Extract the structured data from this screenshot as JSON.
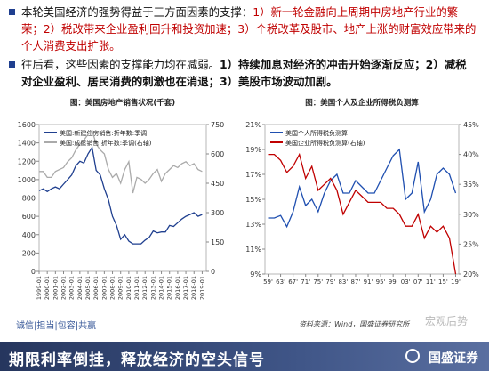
{
  "text_blocks": [
    {
      "parts": [
        "本轮美国经济的强势得益于三方面因素的支撑：",
        "1）新一轮金融向上周期中房地产行业的繁荣；2）税改带来企业盈利回升和投资加速；3）个税改革及股市、地产上涨的财富效应带来的个人消费支出扩张。"
      ]
    },
    {
      "parts": [
        "往后看，这些因素的支撑能力均在减弱。",
        "1）持续加息对经济的冲击开始逐渐反应；2）减税对企业盈利、居民消费的刺激也在消退；3）美股市场波动加剧。"
      ]
    }
  ],
  "chart_data": [
    {
      "type": "line",
      "title": "图：美国房地产销售状况(千套)",
      "x": [
        1999,
        1999.5,
        2000,
        2000.5,
        2001,
        2001.5,
        2002,
        2002.5,
        2003,
        2003.5,
        2004,
        2004.5,
        2005,
        2005.5,
        2006,
        2006.5,
        2007,
        2007.5,
        2008,
        2008.5,
        2009,
        2009.5,
        2010,
        2010.5,
        2011,
        2011.5,
        2012,
        2012.5,
        2013,
        2013.5,
        2014,
        2014.5,
        2015,
        2015.5,
        2016,
        2016.5,
        2017,
        2017.5,
        2018,
        2018.5,
        2019
      ],
      "xlim": [
        1999,
        2019.5
      ],
      "xticks": [
        {
          "value": 1999,
          "label": "1999-01"
        },
        {
          "value": 2000,
          "label": "2000-01"
        },
        {
          "value": 2001,
          "label": "2001-01"
        },
        {
          "value": 2002,
          "label": "2002-01"
        },
        {
          "value": 2003,
          "label": "2003-01"
        },
        {
          "value": 2004,
          "label": "2004-01"
        },
        {
          "value": 2005,
          "label": "2005-01"
        },
        {
          "value": 2006,
          "label": "2006-01"
        },
        {
          "value": 2007,
          "label": "2007-01"
        },
        {
          "value": 2008,
          "label": "2008-01"
        },
        {
          "value": 2009,
          "label": "2009-01"
        },
        {
          "value": 2010,
          "label": "2010-01"
        },
        {
          "value": 2011,
          "label": "2011-01"
        },
        {
          "value": 2012,
          "label": "2012-01"
        },
        {
          "value": 2013,
          "label": "2013-01"
        },
        {
          "value": 2014,
          "label": "2014-01"
        },
        {
          "value": 2015,
          "label": "2015-01"
        },
        {
          "value": 2016,
          "label": "2016-01"
        },
        {
          "value": 2017,
          "label": "2017-01"
        },
        {
          "value": 2018,
          "label": "2018-01"
        },
        {
          "value": 2019,
          "label": "2019-01"
        }
      ],
      "ylim": [
        0,
        1600
      ],
      "yticks": [
        0,
        200,
        400,
        600,
        800,
        1000,
        1200,
        1400,
        1600
      ],
      "y2lim": [
        0,
        750
      ],
      "y2ticks": [
        0,
        150,
        300,
        450,
        600,
        750
      ],
      "series": [
        {
          "name": "美国:新建住房销售:折年数:季调",
          "color": "#1f3f8f",
          "values": [
            880,
            900,
            870,
            900,
            920,
            900,
            950,
            1000,
            1050,
            1150,
            1200,
            1180,
            1280,
            1350,
            1100,
            1050,
            900,
            780,
            600,
            500,
            350,
            400,
            330,
            300,
            300,
            300,
            340,
            370,
            440,
            420,
            430,
            430,
            500,
            490,
            530,
            570,
            600,
            620,
            640,
            600,
            620
          ]
        },
        {
          "name": "美国:成屋销售:折年数:季调(右轴)",
          "color": "#aaaaaa",
          "axis": "y2",
          "values": [
            510,
            510,
            480,
            480,
            510,
            520,
            530,
            560,
            580,
            620,
            650,
            670,
            700,
            720,
            650,
            620,
            600,
            520,
            480,
            500,
            450,
            520,
            560,
            400,
            480,
            470,
            450,
            470,
            500,
            520,
            460,
            500,
            520,
            540,
            530,
            550,
            560,
            540,
            550,
            520,
            510
          ]
        }
      ]
    },
    {
      "type": "line",
      "title": "图：美国个人及企业所得税负测算",
      "x": [
        1959,
        1961,
        1963,
        1965,
        1967,
        1969,
        1971,
        1973,
        1975,
        1977,
        1979,
        1981,
        1983,
        1985,
        1987,
        1989,
        1991,
        1993,
        1995,
        1997,
        1999,
        2001,
        2003,
        2005,
        2007,
        2009,
        2011,
        2013,
        2015,
        2017,
        2019
      ],
      "xlim": [
        1958,
        2020
      ],
      "xticks": [
        {
          "value": 1959,
          "label": "59'"
        },
        {
          "value": 1963,
          "label": "63'"
        },
        {
          "value": 1967,
          "label": "67'"
        },
        {
          "value": 1971,
          "label": "71'"
        },
        {
          "value": 1975,
          "label": "75'"
        },
        {
          "value": 1979,
          "label": "79'"
        },
        {
          "value": 1983,
          "label": "83'"
        },
        {
          "value": 1987,
          "label": "87'"
        },
        {
          "value": 1991,
          "label": "91'"
        },
        {
          "value": 1995,
          "label": "95'"
        },
        {
          "value": 1999,
          "label": "99'"
        },
        {
          "value": 2003,
          "label": "03'"
        },
        {
          "value": 2007,
          "label": "07'"
        },
        {
          "value": 2011,
          "label": "11'"
        },
        {
          "value": 2015,
          "label": "15'"
        },
        {
          "value": 2019,
          "label": "19'"
        }
      ],
      "ylim": [
        9,
        21
      ],
      "yticks": [
        {
          "value": 9,
          "label": "9%"
        },
        {
          "value": 11,
          "label": "11%"
        },
        {
          "value": 13,
          "label": "13%"
        },
        {
          "value": 15,
          "label": "15%"
        },
        {
          "value": 17,
          "label": "17%"
        },
        {
          "value": 19,
          "label": "19%"
        },
        {
          "value": 21,
          "label": "21%"
        }
      ],
      "y2lim": [
        20,
        45
      ],
      "y2ticks": [
        {
          "value": 20,
          "label": "20%"
        },
        {
          "value": 25,
          "label": "25%"
        },
        {
          "value": 30,
          "label": "30%"
        },
        {
          "value": 35,
          "label": "35%"
        },
        {
          "value": 40,
          "label": "40%"
        },
        {
          "value": 45,
          "label": "45%"
        }
      ],
      "series": [
        {
          "name": "美国个人所得税负测算",
          "color": "#1f4fb0",
          "values": [
            13.5,
            13.5,
            13.7,
            12.8,
            14,
            16,
            14.5,
            15,
            14,
            15.5,
            16.5,
            17,
            15.5,
            15.5,
            16.5,
            16,
            15.5,
            15.5,
            16.5,
            17.5,
            18.5,
            19,
            15,
            15.5,
            18,
            14,
            15,
            17,
            17.5,
            17,
            15.5
          ]
        },
        {
          "name": "美国企业所得税负测算(右轴)",
          "color": "#c00000",
          "axis": "y2",
          "values": [
            40,
            40,
            39,
            37,
            38,
            40,
            36,
            38,
            34,
            35,
            36,
            34,
            30,
            32,
            34,
            33,
            32,
            32,
            32,
            31,
            31,
            30,
            28,
            28,
            30,
            26,
            28,
            27,
            28,
            26,
            20
          ]
        }
      ]
    }
  ],
  "footer": {
    "motto": "诚信|担当|包容|共赢",
    "source": "资料来源：Wind，国盛证券研究所",
    "watermark": "宏观后势",
    "banner": "期限利率倒挂，释放经济的空头信号",
    "logo": "国盛证券"
  }
}
